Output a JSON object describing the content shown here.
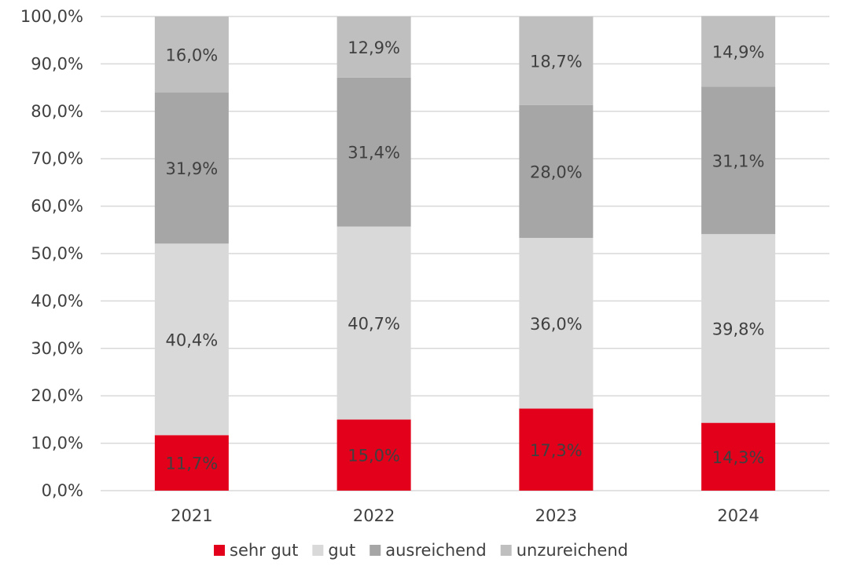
{
  "chart_data": {
    "type": "bar",
    "stacked": true,
    "percent_stacked": true,
    "categories": [
      "2021",
      "2022",
      "2023",
      "2024"
    ],
    "series": [
      {
        "name": "sehr gut",
        "values": [
          11.7,
          15.0,
          17.3,
          14.3
        ],
        "color": "#e2001a"
      },
      {
        "name": "gut",
        "values": [
          40.4,
          40.7,
          36.0,
          39.8
        ],
        "color": "#d9d9d9"
      },
      {
        "name": "ausreichend",
        "values": [
          31.9,
          31.4,
          28.0,
          31.1
        ],
        "color": "#a6a6a6"
      },
      {
        "name": "unzureichend",
        "values": [
          16.0,
          12.9,
          18.7,
          14.9
        ],
        "color": "#bfbfbf"
      }
    ],
    "data_labels": [
      [
        "11,7%",
        "15,0%",
        "17,3%",
        "14,3%"
      ],
      [
        "40,4%",
        "40,7%",
        "36,0%",
        "39,8%"
      ],
      [
        "31,9%",
        "31,4%",
        "28,0%",
        "31,1%"
      ],
      [
        "16,0%",
        "12,9%",
        "18,7%",
        "14,9%"
      ]
    ],
    "y_ticks": [
      0,
      10,
      20,
      30,
      40,
      50,
      60,
      70,
      80,
      90,
      100
    ],
    "y_tick_labels": [
      "0,0%",
      "10,0%",
      "20,0%",
      "30,0%",
      "40,0%",
      "50,0%",
      "60,0%",
      "70,0%",
      "80,0%",
      "90,0%",
      "100,0%"
    ],
    "ylim": [
      0,
      100
    ],
    "grid": true,
    "gridline_color": "#d9d9d9",
    "text_color": "#404040",
    "legend_position": "bottom"
  }
}
